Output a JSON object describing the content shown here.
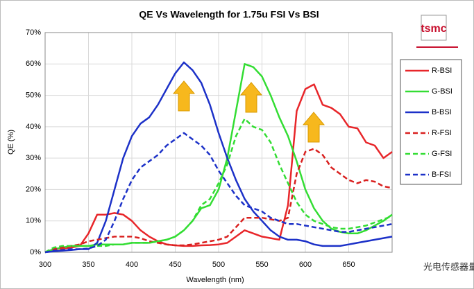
{
  "chart_data": {
    "type": "line",
    "title": "QE Vs Wavelength for 1.75u FSI Vs BSI",
    "xlabel": "Wavelength (nm)",
    "ylabel": "QE (%)",
    "logo": "tsmc",
    "watermark": "光电传感器量测",
    "x": [
      300,
      310,
      320,
      330,
      340,
      350,
      360,
      370,
      380,
      390,
      400,
      410,
      420,
      430,
      440,
      450,
      460,
      470,
      480,
      490,
      500,
      510,
      520,
      530,
      540,
      550,
      560,
      570,
      580,
      590,
      600,
      610,
      620,
      630,
      640,
      650,
      660,
      670,
      680,
      690,
      700
    ],
    "xlim": [
      300,
      700
    ],
    "xticks": [
      300,
      350,
      400,
      450,
      500,
      550,
      600,
      650
    ],
    "ylim": [
      0,
      70
    ],
    "yticks": [
      {
        "value": 0,
        "label": "0%"
      },
      {
        "value": 10,
        "label": "10%"
      },
      {
        "value": 20,
        "label": "20%"
      },
      {
        "value": 30,
        "label": "30%"
      },
      {
        "value": 40,
        "label": "40%"
      },
      {
        "value": 50,
        "label": "50%"
      },
      {
        "value": 60,
        "label": "60%"
      },
      {
        "value": 70,
        "label": "70%"
      }
    ],
    "grid": true,
    "legend": "right",
    "series": [
      {
        "name": "R-BSI",
        "color": "#e8262a",
        "dash": false,
        "values": [
          0,
          1,
          1.2,
          1.5,
          2,
          6,
          12,
          12,
          12.5,
          12,
          10,
          7,
          5,
          3.5,
          2.5,
          2.2,
          2,
          2,
          2.2,
          2.3,
          2.5,
          3,
          5,
          7,
          6,
          5,
          4.5,
          4,
          15,
          45,
          52,
          53.5,
          47,
          46,
          44,
          40,
          39.5,
          35,
          34,
          30,
          32
        ]
      },
      {
        "name": "G-BSI",
        "color": "#33dd33",
        "dash": false,
        "values": [
          0,
          1,
          1.5,
          2,
          2,
          2,
          2.5,
          2.5,
          2.5,
          2.5,
          3,
          3,
          3,
          3.5,
          4,
          5,
          7,
          10,
          14,
          15,
          20,
          30,
          45,
          60,
          59,
          56,
          50,
          43,
          37,
          29,
          20,
          14,
          10,
          7.5,
          6.5,
          6,
          6,
          7,
          8.5,
          10,
          12
        ]
      },
      {
        "name": "B-BSI",
        "color": "#1c31c8",
        "dash": false,
        "values": [
          0,
          0.3,
          0.5,
          0.7,
          1,
          1,
          3,
          10,
          20,
          30,
          37,
          41,
          43,
          47,
          52,
          57,
          60.5,
          58,
          54,
          47,
          38,
          30,
          23,
          17,
          13,
          10,
          7,
          5,
          4,
          4,
          3.5,
          2.5,
          2,
          2,
          2,
          2.5,
          3,
          3.5,
          4,
          4.5,
          5
        ]
      },
      {
        "name": "R-FSI",
        "color": "#d9201f",
        "dash": true,
        "values": [
          0,
          1,
          1.5,
          2,
          2.5,
          3.5,
          4,
          4.5,
          5,
          5,
          5,
          4.5,
          3.5,
          3,
          2.5,
          2.2,
          2.2,
          2.5,
          3,
          3.5,
          4,
          5,
          8,
          11,
          11,
          11,
          10.5,
          10,
          11,
          25,
          32,
          33,
          31,
          27,
          25,
          23,
          22,
          23,
          22.5,
          21,
          20.5
        ]
      },
      {
        "name": "G-FSI",
        "color": "#33dd33",
        "dash": true,
        "values": [
          0,
          1.5,
          2,
          2,
          2,
          2,
          2,
          2,
          2.5,
          2.5,
          3,
          3,
          3,
          3.5,
          4,
          5,
          7,
          10,
          15,
          17,
          22,
          28,
          37,
          42.5,
          40,
          39,
          35,
          28,
          22,
          16,
          12,
          10,
          9,
          8,
          7.5,
          7.5,
          8,
          8.5,
          9.5,
          10.5,
          11.5
        ]
      },
      {
        "name": "B-FSI",
        "color": "#1c31c8",
        "dash": true,
        "values": [
          0,
          0.5,
          0.7,
          1,
          1,
          1.2,
          2,
          4,
          10,
          17,
          23,
          27,
          29,
          31,
          34,
          36,
          38,
          36,
          34,
          31,
          26,
          22,
          18,
          15,
          14,
          13,
          11,
          10,
          9,
          9,
          8.5,
          8,
          7.5,
          7,
          6.5,
          6.5,
          7,
          7.5,
          8,
          8.5,
          9
        ]
      }
    ]
  }
}
